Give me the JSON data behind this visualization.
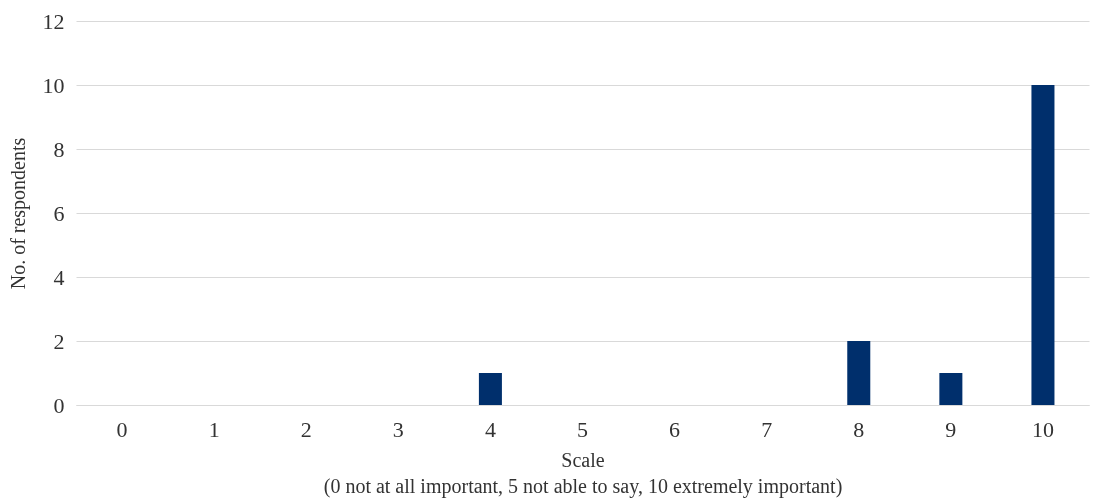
{
  "chart_data": {
    "type": "bar",
    "xlabel": "Scale\n(0 not at all important, 5 not able to say, 10 extremely important)",
    "ylabel": "No. of respondents",
    "categories": [
      "0",
      "1",
      "2",
      "3",
      "4",
      "5",
      "6",
      "7",
      "8",
      "9",
      "10"
    ],
    "values": [
      0,
      0,
      0,
      0,
      1,
      0,
      0,
      0,
      2,
      1,
      10
    ],
    "color": "#002f6c",
    "ylim": [
      0,
      12
    ],
    "yticks": [
      0,
      2,
      4,
      6,
      8,
      10,
      12
    ],
    "grid": "y"
  }
}
